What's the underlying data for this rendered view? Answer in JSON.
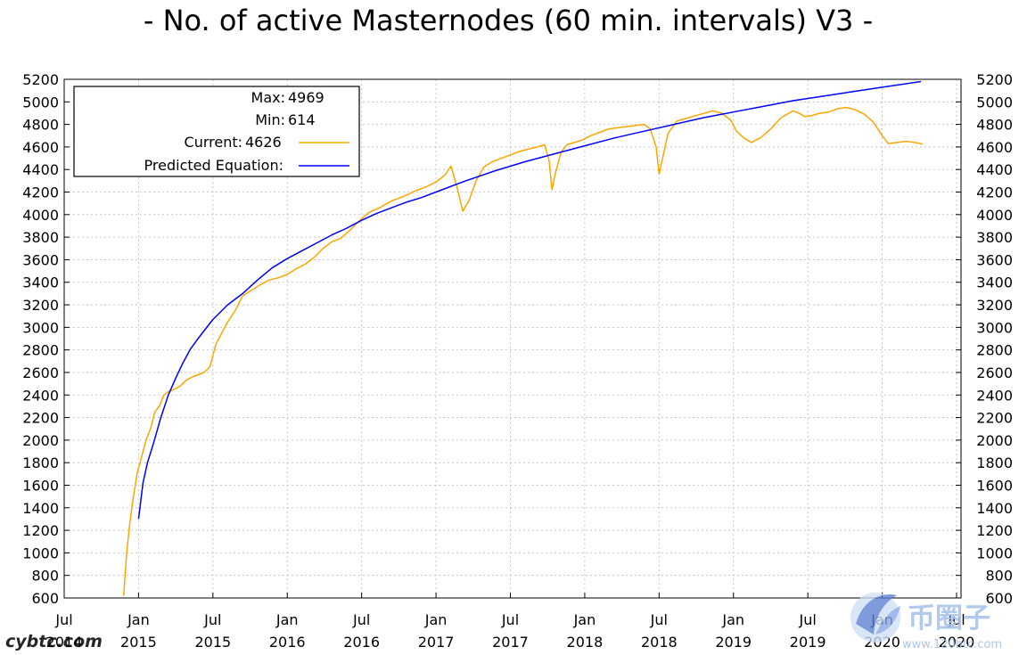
{
  "chart_data": {
    "type": "line",
    "title": "- No. of active Masternodes (60 min. intervals) V3 -",
    "xlabel": "",
    "ylabel": "",
    "ylim": [
      600,
      5200
    ],
    "yticks": [
      600,
      800,
      1000,
      1200,
      1400,
      1600,
      1800,
      2000,
      2200,
      2400,
      2600,
      2800,
      3000,
      3200,
      3400,
      3600,
      3800,
      4000,
      4200,
      4400,
      4600,
      4800,
      5000,
      5200
    ],
    "xlim": [
      2014.5,
      2020.53
    ],
    "xticks": [
      {
        "x": 2014.5,
        "month": "Jul",
        "year": "2014"
      },
      {
        "x": 2015.0,
        "month": "Jan",
        "year": "2015"
      },
      {
        "x": 2015.5,
        "month": "Jul",
        "year": "2015"
      },
      {
        "x": 2016.0,
        "month": "Jan",
        "year": "2016"
      },
      {
        "x": 2016.5,
        "month": "Jul",
        "year": "2016"
      },
      {
        "x": 2017.0,
        "month": "Jan",
        "year": "2017"
      },
      {
        "x": 2017.5,
        "month": "Jul",
        "year": "2017"
      },
      {
        "x": 2018.0,
        "month": "Jan",
        "year": "2018"
      },
      {
        "x": 2018.5,
        "month": "Jul",
        "year": "2018"
      },
      {
        "x": 2019.0,
        "month": "Jan",
        "year": "2019"
      },
      {
        "x": 2019.5,
        "month": "Jul",
        "year": "2019"
      },
      {
        "x": 2020.0,
        "month": "Jan",
        "year": "2020"
      },
      {
        "x": 2020.5,
        "month": "Jul",
        "year": "2020"
      }
    ],
    "grid": true,
    "legend": {
      "position": "top-left",
      "entries": [
        {
          "label": "Max:",
          "value": "4969"
        },
        {
          "label": "Min:",
          "value": "614"
        },
        {
          "label": "Current:",
          "value": "4626",
          "color": "#ffa500"
        },
        {
          "label": "Predicted Equation:",
          "value": "",
          "color": "#0000ff"
        }
      ]
    },
    "series": [
      {
        "name": "Current",
        "color": "#ffa500",
        "points": [
          [
            2014.9,
            620
          ],
          [
            2014.92,
            1000
          ],
          [
            2014.94,
            1250
          ],
          [
            2014.96,
            1450
          ],
          [
            2014.99,
            1700
          ],
          [
            2015.02,
            1850
          ],
          [
            2015.05,
            2000
          ],
          [
            2015.08,
            2100
          ],
          [
            2015.11,
            2250
          ],
          [
            2015.14,
            2300
          ],
          [
            2015.17,
            2400
          ],
          [
            2015.2,
            2430
          ],
          [
            2015.24,
            2450
          ],
          [
            2015.28,
            2480
          ],
          [
            2015.32,
            2530
          ],
          [
            2015.36,
            2560
          ],
          [
            2015.4,
            2580
          ],
          [
            2015.44,
            2600
          ],
          [
            2015.48,
            2650
          ],
          [
            2015.52,
            2850
          ],
          [
            2015.56,
            2950
          ],
          [
            2015.6,
            3050
          ],
          [
            2015.65,
            3150
          ],
          [
            2015.7,
            3280
          ],
          [
            2015.76,
            3330
          ],
          [
            2015.82,
            3380
          ],
          [
            2015.88,
            3420
          ],
          [
            2015.94,
            3440
          ],
          [
            2016.0,
            3470
          ],
          [
            2016.06,
            3520
          ],
          [
            2016.12,
            3560
          ],
          [
            2016.18,
            3620
          ],
          [
            2016.24,
            3700
          ],
          [
            2016.3,
            3760
          ],
          [
            2016.36,
            3790
          ],
          [
            2016.42,
            3860
          ],
          [
            2016.48,
            3940
          ],
          [
            2016.55,
            4020
          ],
          [
            2016.62,
            4060
          ],
          [
            2016.7,
            4120
          ],
          [
            2016.78,
            4160
          ],
          [
            2016.86,
            4210
          ],
          [
            2016.94,
            4250
          ],
          [
            2017.0,
            4290
          ],
          [
            2017.06,
            4350
          ],
          [
            2017.1,
            4430
          ],
          [
            2017.14,
            4250
          ],
          [
            2017.18,
            4030
          ],
          [
            2017.22,
            4120
          ],
          [
            2017.27,
            4300
          ],
          [
            2017.32,
            4420
          ],
          [
            2017.38,
            4470
          ],
          [
            2017.44,
            4500
          ],
          [
            2017.5,
            4530
          ],
          [
            2017.56,
            4560
          ],
          [
            2017.62,
            4580
          ],
          [
            2017.68,
            4600
          ],
          [
            2017.73,
            4620
          ],
          [
            2017.76,
            4480
          ],
          [
            2017.78,
            4220
          ],
          [
            2017.8,
            4350
          ],
          [
            2017.84,
            4550
          ],
          [
            2017.88,
            4620
          ],
          [
            2017.93,
            4640
          ],
          [
            2017.98,
            4660
          ],
          [
            2018.04,
            4700
          ],
          [
            2018.1,
            4730
          ],
          [
            2018.16,
            4760
          ],
          [
            2018.22,
            4770
          ],
          [
            2018.28,
            4780
          ],
          [
            2018.34,
            4790
          ],
          [
            2018.4,
            4800
          ],
          [
            2018.44,
            4760
          ],
          [
            2018.48,
            4600
          ],
          [
            2018.5,
            4360
          ],
          [
            2018.52,
            4480
          ],
          [
            2018.56,
            4720
          ],
          [
            2018.62,
            4830
          ],
          [
            2018.7,
            4860
          ],
          [
            2018.78,
            4890
          ],
          [
            2018.86,
            4920
          ],
          [
            2018.92,
            4900
          ],
          [
            2018.98,
            4840
          ],
          [
            2019.02,
            4740
          ],
          [
            2019.07,
            4680
          ],
          [
            2019.12,
            4640
          ],
          [
            2019.18,
            4680
          ],
          [
            2019.25,
            4760
          ],
          [
            2019.32,
            4860
          ],
          [
            2019.4,
            4920
          ],
          [
            2019.44,
            4900
          ],
          [
            2019.48,
            4870
          ],
          [
            2019.53,
            4880
          ],
          [
            2019.58,
            4900
          ],
          [
            2019.64,
            4910
          ],
          [
            2019.7,
            4940
          ],
          [
            2019.76,
            4950
          ],
          [
            2019.82,
            4930
          ],
          [
            2019.88,
            4890
          ],
          [
            2019.94,
            4820
          ],
          [
            2020.0,
            4700
          ],
          [
            2020.04,
            4630
          ],
          [
            2020.1,
            4640
          ],
          [
            2020.16,
            4650
          ],
          [
            2020.22,
            4640
          ],
          [
            2020.27,
            4626
          ]
        ]
      },
      {
        "name": "Predicted Equation",
        "color": "#0000ff",
        "points": [
          [
            2015.0,
            1300
          ],
          [
            2015.03,
            1620
          ],
          [
            2015.06,
            1800
          ],
          [
            2015.1,
            1970
          ],
          [
            2015.15,
            2200
          ],
          [
            2015.2,
            2400
          ],
          [
            2015.25,
            2550
          ],
          [
            2015.3,
            2690
          ],
          [
            2015.35,
            2810
          ],
          [
            2015.4,
            2900
          ],
          [
            2015.5,
            3070
          ],
          [
            2015.6,
            3200
          ],
          [
            2015.7,
            3300
          ],
          [
            2015.8,
            3420
          ],
          [
            2015.9,
            3530
          ],
          [
            2016.0,
            3610
          ],
          [
            2016.1,
            3680
          ],
          [
            2016.2,
            3750
          ],
          [
            2016.3,
            3820
          ],
          [
            2016.4,
            3880
          ],
          [
            2016.5,
            3950
          ],
          [
            2016.6,
            4010
          ],
          [
            2016.7,
            4060
          ],
          [
            2016.8,
            4110
          ],
          [
            2016.9,
            4150
          ],
          [
            2017.0,
            4200
          ],
          [
            2017.2,
            4300
          ],
          [
            2017.4,
            4390
          ],
          [
            2017.6,
            4470
          ],
          [
            2017.8,
            4540
          ],
          [
            2018.0,
            4610
          ],
          [
            2018.2,
            4680
          ],
          [
            2018.4,
            4740
          ],
          [
            2018.6,
            4800
          ],
          [
            2018.8,
            4860
          ],
          [
            2019.0,
            4910
          ],
          [
            2019.2,
            4960
          ],
          [
            2019.4,
            5010
          ],
          [
            2019.6,
            5050
          ],
          [
            2019.8,
            5090
          ],
          [
            2020.0,
            5130
          ],
          [
            2020.26,
            5180
          ]
        ]
      }
    ]
  },
  "watermark": {
    "left_text": "cybtc.com",
    "right_cn": "币圈子",
    "right_url": "www.120btc.com"
  }
}
